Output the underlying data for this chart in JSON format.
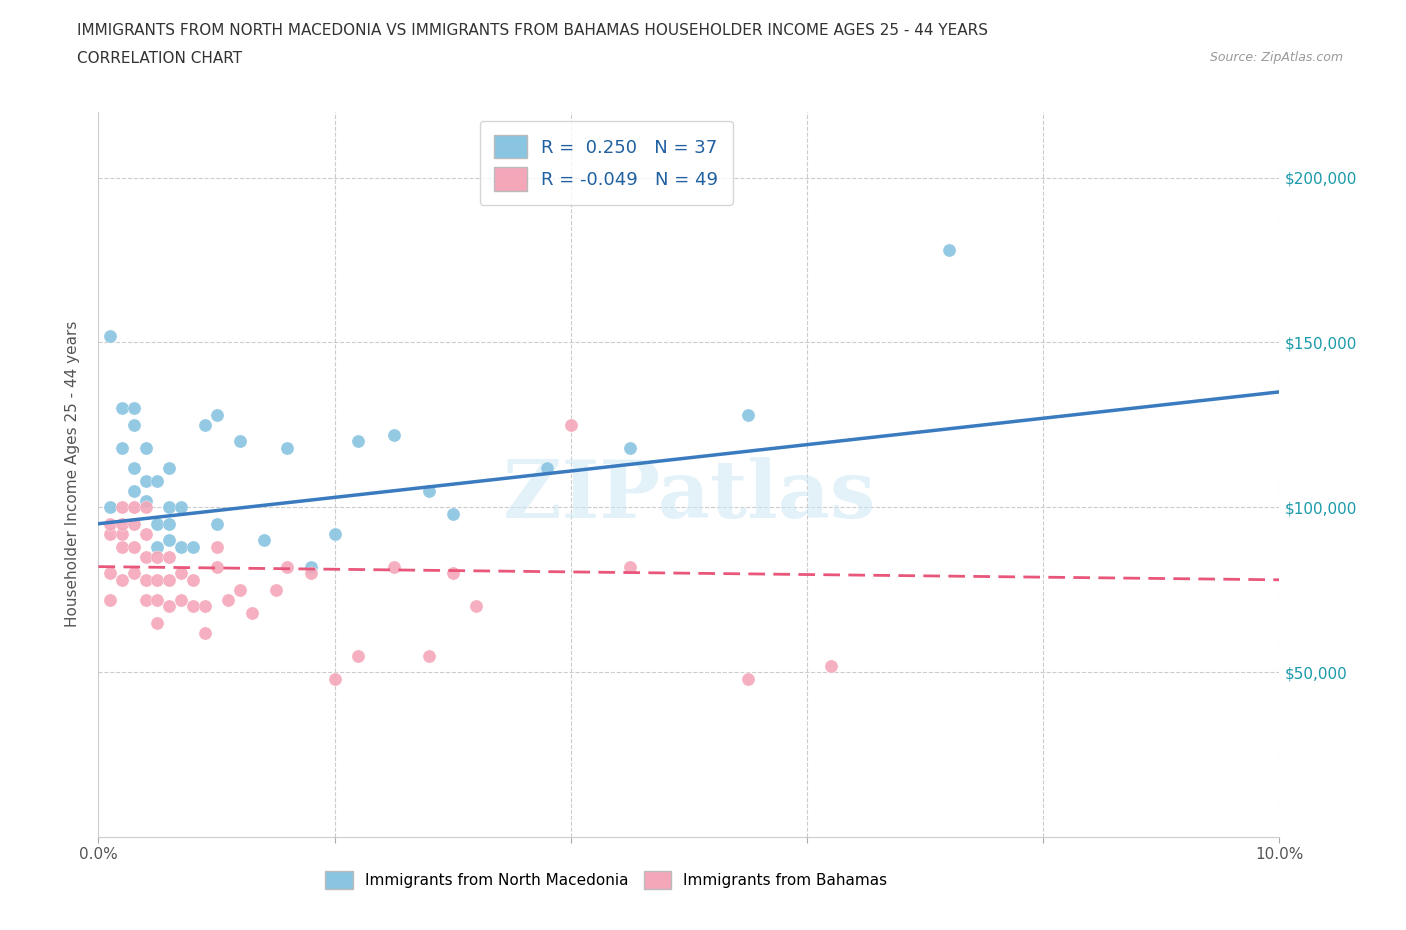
{
  "title_line1": "IMMIGRANTS FROM NORTH MACEDONIA VS IMMIGRANTS FROM BAHAMAS HOUSEHOLDER INCOME AGES 25 - 44 YEARS",
  "title_line2": "CORRELATION CHART",
  "source_text": "Source: ZipAtlas.com",
  "ylabel": "Householder Income Ages 25 - 44 years",
  "xlim": [
    0,
    0.1
  ],
  "ylim": [
    0,
    220000
  ],
  "x_ticks": [
    0.0,
    0.02,
    0.04,
    0.06,
    0.08,
    0.1
  ],
  "y_ticks": [
    0,
    50000,
    100000,
    150000,
    200000
  ],
  "blue_color": "#89c4e1",
  "pink_color": "#f4a7b9",
  "blue_line_color": "#3a7abf",
  "pink_line_color": "#e8567a",
  "R_blue": 0.25,
  "N_blue": 37,
  "R_pink": -0.049,
  "N_pink": 49,
  "legend_text_color": "#2060a0",
  "watermark": "ZIPatlas",
  "blue_scatter_x": [
    0.001,
    0.001,
    0.002,
    0.002,
    0.003,
    0.003,
    0.003,
    0.003,
    0.004,
    0.004,
    0.004,
    0.005,
    0.005,
    0.005,
    0.006,
    0.006,
    0.006,
    0.006,
    0.007,
    0.007,
    0.008,
    0.009,
    0.01,
    0.01,
    0.012,
    0.014,
    0.016,
    0.018,
    0.02,
    0.022,
    0.025,
    0.028,
    0.03,
    0.038,
    0.045,
    0.055,
    0.072
  ],
  "blue_scatter_y": [
    100000,
    152000,
    130000,
    118000,
    105000,
    112000,
    125000,
    130000,
    102000,
    108000,
    118000,
    88000,
    95000,
    108000,
    90000,
    95000,
    100000,
    112000,
    88000,
    100000,
    88000,
    125000,
    95000,
    128000,
    120000,
    90000,
    118000,
    82000,
    92000,
    120000,
    122000,
    105000,
    98000,
    112000,
    118000,
    128000,
    178000
  ],
  "pink_scatter_x": [
    0.001,
    0.001,
    0.001,
    0.001,
    0.002,
    0.002,
    0.002,
    0.002,
    0.002,
    0.003,
    0.003,
    0.003,
    0.003,
    0.004,
    0.004,
    0.004,
    0.004,
    0.004,
    0.005,
    0.005,
    0.005,
    0.005,
    0.006,
    0.006,
    0.006,
    0.007,
    0.007,
    0.008,
    0.008,
    0.009,
    0.009,
    0.01,
    0.01,
    0.011,
    0.012,
    0.013,
    0.015,
    0.016,
    0.018,
    0.02,
    0.022,
    0.025,
    0.028,
    0.03,
    0.032,
    0.04,
    0.045,
    0.055,
    0.062
  ],
  "pink_scatter_y": [
    92000,
    95000,
    80000,
    72000,
    88000,
    92000,
    95000,
    100000,
    78000,
    80000,
    88000,
    95000,
    100000,
    72000,
    78000,
    85000,
    92000,
    100000,
    65000,
    72000,
    78000,
    85000,
    70000,
    78000,
    85000,
    72000,
    80000,
    70000,
    78000,
    62000,
    70000,
    82000,
    88000,
    72000,
    75000,
    68000,
    75000,
    82000,
    80000,
    48000,
    55000,
    82000,
    55000,
    80000,
    70000,
    125000,
    82000,
    48000,
    52000
  ]
}
